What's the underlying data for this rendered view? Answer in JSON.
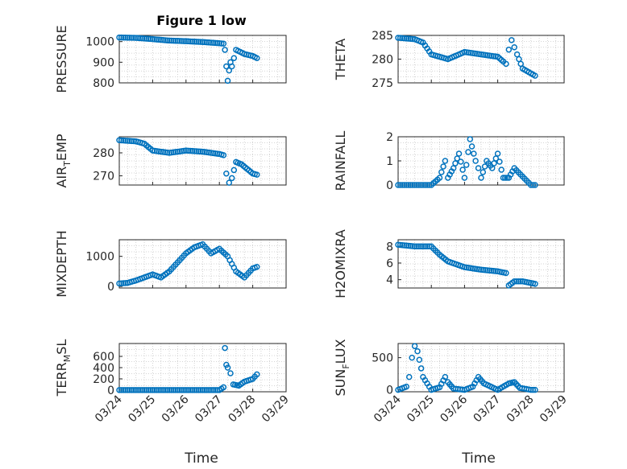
{
  "figure": {
    "title": "Figure 1 low",
    "xlabel": "Time",
    "colors": {
      "marker": "#0072BD",
      "axis": "#262626",
      "grid": "#c8c8c8"
    }
  },
  "chart_data": [
    {
      "type": "scatter",
      "title": "Figure 1 low",
      "ylabel": "PRESSURE",
      "xlim": [
        "03/24",
        "03/29"
      ],
      "ylim": [
        800,
        1030
      ],
      "yticks": [
        800,
        900,
        1000
      ],
      "xticks": [
        "03/24",
        "03/25",
        "03/26",
        "03/27",
        "03/28",
        "03/29"
      ],
      "show_xticklabels": false,
      "x": [
        "03/24 00:00",
        "03/24 12:00",
        "03/25 00:00",
        "03/25 12:00",
        "03/26 00:00",
        "03/26 12:00",
        "03/27 00:00",
        "03/27 03:00",
        "03/27 04:00",
        "03/27 05:00",
        "03/27 06:00",
        "03/27 07:00",
        "03/27 08:00",
        "03/27 09:00",
        "03/27 12:00",
        "03/27 15:00",
        "03/27 18:00",
        "03/28 00:00",
        "03/28 03:00"
      ],
      "y": [
        1020,
        1018,
        1012,
        1005,
        1002,
        998,
        992,
        990,
        960,
        880,
        810,
        860,
        900,
        880,
        960,
        950,
        940,
        930,
        920
      ]
    },
    {
      "type": "scatter",
      "ylabel": "THETA",
      "xlim": [
        "03/24",
        "03/29"
      ],
      "ylim": [
        275,
        285
      ],
      "yticks": [
        275,
        280,
        285
      ],
      "xticks": [
        "03/24",
        "03/25",
        "03/26",
        "03/27",
        "03/28",
        "03/29"
      ],
      "show_xticklabels": false,
      "x": [
        "03/24 00:00",
        "03/24 12:00",
        "03/24 18:00",
        "03/25 00:00",
        "03/25 06:00",
        "03/25 12:00",
        "03/26 00:00",
        "03/26 12:00",
        "03/27 00:00",
        "03/27 04:00",
        "03/27 06:00",
        "03/27 08:00",
        "03/27 10:00",
        "03/27 12:00",
        "03/27 14:00",
        "03/27 18:00",
        "03/28 00:00",
        "03/28 03:00"
      ],
      "y": [
        284.5,
        284.2,
        283.5,
        281,
        280.5,
        280,
        281.5,
        281,
        280.5,
        279.5,
        279,
        282,
        284,
        282.5,
        281,
        278,
        277,
        276.5
      ]
    },
    {
      "type": "scatter",
      "ylabel_main": "AIR",
      "ylabel_sub": "T",
      "ylabel_rest": "EMP",
      "xlim": [
        "03/24",
        "03/29"
      ],
      "ylim": [
        266,
        287
      ],
      "yticks": [
        270,
        280
      ],
      "xticks": [
        "03/24",
        "03/25",
        "03/26",
        "03/27",
        "03/28",
        "03/29"
      ],
      "show_xticklabels": false,
      "x": [
        "03/24 00:00",
        "03/24 12:00",
        "03/24 18:00",
        "03/25 00:00",
        "03/25 12:00",
        "03/26 00:00",
        "03/26 12:00",
        "03/27 00:00",
        "03/27 03:00",
        "03/27 05:00",
        "03/27 07:00",
        "03/27 09:00",
        "03/27 12:00",
        "03/27 16:00",
        "03/27 20:00",
        "03/28 00:00",
        "03/28 03:00"
      ],
      "y": [
        285.5,
        285,
        284,
        281,
        280,
        281,
        280.5,
        279.5,
        279,
        271,
        267,
        269,
        276,
        275,
        273,
        271,
        270.5
      ]
    },
    {
      "type": "scatter",
      "ylabel": "RAINFALL",
      "xlim": [
        "03/24",
        "03/29"
      ],
      "ylim": [
        0,
        2
      ],
      "yticks": [
        0,
        1,
        2
      ],
      "xticks": [
        "03/24",
        "03/25",
        "03/26",
        "03/27",
        "03/28",
        "03/29"
      ],
      "show_xticklabels": false,
      "x": [
        "03/24 00:00",
        "03/24 12:00",
        "03/25 00:00",
        "03/25 06:00",
        "03/25 10:00",
        "03/25 12:00",
        "03/25 16:00",
        "03/25 20:00",
        "03/26 00:00",
        "03/26 04:00",
        "03/26 08:00",
        "03/26 10:00",
        "03/26 12:00",
        "03/26 16:00",
        "03/26 20:00",
        "03/27 00:00",
        "03/27 04:00",
        "03/27 08:00",
        "03/27 12:00",
        "03/28 00:00",
        "03/28 03:00"
      ],
      "y": [
        0,
        0,
        0,
        0.3,
        1,
        0.3,
        0.7,
        1.3,
        0.3,
        1.9,
        1,
        0.7,
        0.3,
        1,
        0.7,
        1.3,
        0.3,
        0.3,
        0.7,
        0,
        0
      ]
    },
    {
      "type": "scatter",
      "ylabel": "MIXDEPTH",
      "xlim": [
        "03/24",
        "03/29"
      ],
      "ylim": [
        -50,
        1550
      ],
      "yticks": [
        0,
        1000
      ],
      "xticks": [
        "03/24",
        "03/25",
        "03/26",
        "03/27",
        "03/28",
        "03/29"
      ],
      "show_xticklabels": false,
      "x": [
        "03/24 00:00",
        "03/24 06:00",
        "03/24 12:00",
        "03/24 18:00",
        "03/25 00:00",
        "03/25 06:00",
        "03/25 12:00",
        "03/25 18:00",
        "03/26 00:00",
        "03/26 06:00",
        "03/26 12:00",
        "03/26 18:00",
        "03/27 00:00",
        "03/27 06:00",
        "03/27 12:00",
        "03/27 18:00",
        "03/28 00:00",
        "03/28 03:00"
      ],
      "y": [
        100,
        120,
        200,
        300,
        400,
        300,
        500,
        800,
        1100,
        1300,
        1400,
        1100,
        1250,
        1000,
        500,
        300,
        600,
        650
      ]
    },
    {
      "type": "scatter",
      "ylabel": "H2OMIXRA",
      "xlim": [
        "03/24",
        "03/29"
      ],
      "ylim": [
        3,
        8.8
      ],
      "yticks": [
        4,
        6,
        8
      ],
      "xticks": [
        "03/24",
        "03/25",
        "03/26",
        "03/27",
        "03/28",
        "03/29"
      ],
      "show_xticklabels": false,
      "x": [
        "03/24 00:00",
        "03/24 12:00",
        "03/25 00:00",
        "03/25 06:00",
        "03/25 12:00",
        "03/26 00:00",
        "03/26 12:00",
        "03/27 00:00",
        "03/27 06:00",
        "03/27 08:00",
        "03/27 12:00",
        "03/27 18:00",
        "03/28 00:00",
        "03/28 03:00"
      ],
      "y": [
        8.2,
        8,
        8,
        7,
        6.2,
        5.5,
        5.2,
        5,
        4.8,
        3.3,
        3.8,
        3.8,
        3.6,
        3.5
      ]
    },
    {
      "type": "scatter",
      "ylabel_main": "TERR",
      "ylabel_sub": "M",
      "ylabel_rest": "SL",
      "xlim": [
        "03/24",
        "03/29"
      ],
      "ylim": [
        -30,
        830
      ],
      "yticks": [
        0,
        200,
        400,
        600
      ],
      "xticks": [
        "03/24",
        "03/25",
        "03/26",
        "03/27",
        "03/28",
        "03/29"
      ],
      "show_xticklabels": true,
      "x": [
        "03/24 00:00",
        "03/24 12:00",
        "03/25 00:00",
        "03/25 12:00",
        "03/26 00:00",
        "03/26 12:00",
        "03/27 00:00",
        "03/27 03:00",
        "03/27 04:00",
        "03/27 05:00",
        "03/27 06:00",
        "03/27 08:00",
        "03/27 10:00",
        "03/27 14:00",
        "03/27 18:00",
        "03/28 00:00",
        "03/28 03:00"
      ],
      "y": [
        0,
        0,
        0,
        0,
        0,
        0,
        0,
        50,
        750,
        450,
        400,
        300,
        100,
        80,
        150,
        200,
        280
      ]
    },
    {
      "type": "scatter",
      "ylabel_main": "SUN",
      "ylabel_sub": "F",
      "ylabel_rest": "LUX",
      "xlim": [
        "03/24",
        "03/29"
      ],
      "ylim": [
        -30,
        720
      ],
      "yticks": [
        0,
        500
      ],
      "xticks": [
        "03/24",
        "03/25",
        "03/26",
        "03/27",
        "03/28",
        "03/29"
      ],
      "show_xticklabels": true,
      "x": [
        "03/24 00:00",
        "03/24 06:00",
        "03/24 08:00",
        "03/24 10:00",
        "03/24 12:00",
        "03/24 14:00",
        "03/24 18:00",
        "03/25 00:00",
        "03/25 06:00",
        "03/25 10:00",
        "03/25 12:00",
        "03/25 16:00",
        "03/26 00:00",
        "03/26 06:00",
        "03/26 10:00",
        "03/26 14:00",
        "03/27 00:00",
        "03/27 08:00",
        "03/27 12:00",
        "03/27 16:00",
        "03/28 00:00",
        "03/28 03:00"
      ],
      "y": [
        0,
        50,
        200,
        500,
        680,
        600,
        200,
        0,
        40,
        200,
        120,
        20,
        0,
        50,
        200,
        100,
        0,
        100,
        120,
        30,
        0,
        0
      ]
    }
  ]
}
